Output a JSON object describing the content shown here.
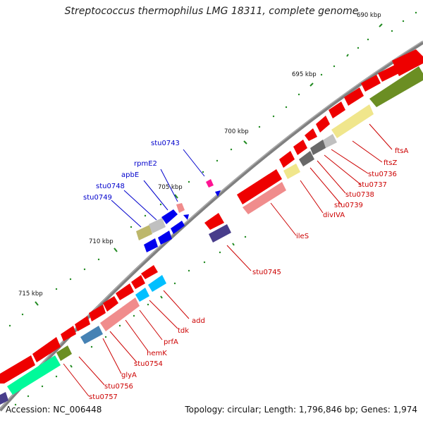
{
  "title": "Streptococcus thermophilus LMG 18311, complete genome",
  "footer": {
    "accession": "Accession: NC_006448",
    "summary": "Topology: circular; Length: 1,796,846 bp; Genes: 1,974"
  },
  "kbp_labels": [
    "690 kbp",
    "695 kbp",
    "700 kbp",
    "705 kbp",
    "710 kbp",
    "715 kbp"
  ],
  "blue_labels": [
    "stu0743",
    "rpmE2",
    "apbE",
    "stu0748",
    "stu0749"
  ],
  "red_labels": [
    "ftsA",
    "ftsZ",
    "stu0736",
    "stu0737",
    "stu0738",
    "stu0739",
    "divIVA",
    "ileS",
    "stu0745",
    "add",
    "tdk",
    "prfA",
    "hemK",
    "stu0754",
    "glyA",
    "stu0756",
    "stu0757"
  ],
  "colors": {
    "backbone": "#808080",
    "gene_red": "#ee0000",
    "gene_pink": "#f08c8c",
    "gene_blue": "#0000ee",
    "gene_olive": "#6b8e23",
    "gene_khaki": "#f0e68c",
    "gene_gray": "#696969",
    "gene_silver": "#c0c0c0",
    "gene_slate": "#483d8b",
    "gene_skyblue": "#00bfff",
    "gene_steel": "#4682b4",
    "gene_spring": "#00fa9a",
    "gene_magenta": "#ff1493",
    "tick": "#228b22",
    "label_blue": "#0000cc",
    "label_red": "#cc0000"
  }
}
